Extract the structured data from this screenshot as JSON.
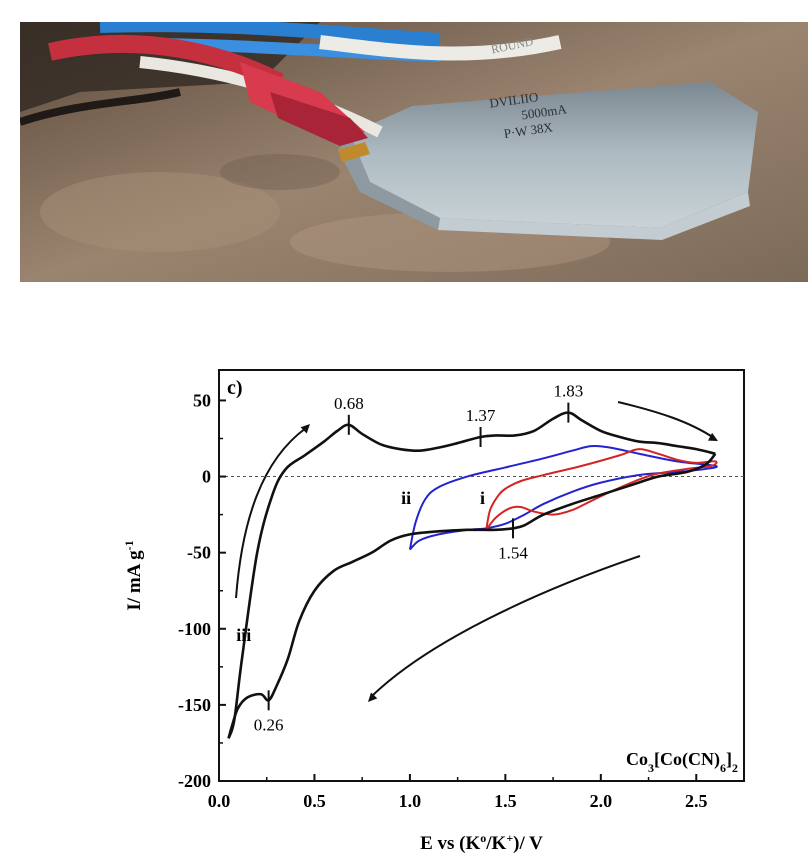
{
  "photo": {
    "label_fragments": [
      "ROUND",
      "DVILIIO",
      "5000mA",
      "P·W 38X"
    ],
    "colors": {
      "cardboard": "#9b8672",
      "pouch": "#a9b6bd",
      "red_clip": "#d83a4e",
      "blue_wire": "#2a7fd0",
      "white_wire": "#e9e7df"
    }
  },
  "chart_data": {
    "type": "line",
    "panel_label": "c)",
    "xlabel": "E vs (K°/K⁺)/ V",
    "ylabel": "I/ mA g⁻¹",
    "xlim": [
      0.0,
      2.75
    ],
    "ylim": [
      -200,
      70
    ],
    "xticks": [
      "0.0",
      "0.5",
      "1.0",
      "1.5",
      "2.0",
      "2.5"
    ],
    "yticks": [
      "50",
      "0",
      "-50",
      "-100",
      "-150",
      "-200"
    ],
    "compound": "Co3[Co(CN)6]2",
    "zero_line": true,
    "series": [
      {
        "name": "iii",
        "color": "#111111",
        "oxidation": [
          [
            0.05,
            -172
          ],
          [
            0.08,
            -160
          ],
          [
            0.12,
            -120
          ],
          [
            0.2,
            -50
          ],
          [
            0.28,
            -12
          ],
          [
            0.35,
            5
          ],
          [
            0.45,
            14
          ],
          [
            0.55,
            23
          ],
          [
            0.62,
            30
          ],
          [
            0.68,
            34
          ],
          [
            0.75,
            28
          ],
          [
            0.85,
            21
          ],
          [
            0.95,
            18
          ],
          [
            1.05,
            17
          ],
          [
            1.15,
            19
          ],
          [
            1.25,
            22
          ],
          [
            1.37,
            26
          ],
          [
            1.45,
            27
          ],
          [
            1.55,
            27
          ],
          [
            1.65,
            30
          ],
          [
            1.75,
            38
          ],
          [
            1.83,
            42
          ],
          [
            1.9,
            37
          ],
          [
            2.0,
            30
          ],
          [
            2.1,
            26
          ],
          [
            2.2,
            23
          ],
          [
            2.3,
            22
          ],
          [
            2.4,
            20
          ],
          [
            2.5,
            18
          ],
          [
            2.6,
            15
          ]
        ],
        "reduction": [
          [
            2.6,
            15
          ],
          [
            2.55,
            8
          ],
          [
            2.45,
            3
          ],
          [
            2.3,
            0
          ],
          [
            2.15,
            -6
          ],
          [
            2.0,
            -12
          ],
          [
            1.85,
            -18
          ],
          [
            1.7,
            -25
          ],
          [
            1.6,
            -32
          ],
          [
            1.54,
            -34
          ],
          [
            1.45,
            -35
          ],
          [
            1.3,
            -35
          ],
          [
            1.15,
            -36
          ],
          [
            1.0,
            -38
          ],
          [
            0.9,
            -42
          ],
          [
            0.8,
            -50
          ],
          [
            0.7,
            -56
          ],
          [
            0.6,
            -62
          ],
          [
            0.5,
            -75
          ],
          [
            0.42,
            -95
          ],
          [
            0.36,
            -120
          ],
          [
            0.3,
            -138
          ],
          [
            0.26,
            -147
          ],
          [
            0.22,
            -143
          ],
          [
            0.15,
            -145
          ],
          [
            0.1,
            -152
          ],
          [
            0.07,
            -163
          ],
          [
            0.05,
            -172
          ]
        ]
      },
      {
        "name": "ii",
        "color": "#2323d0",
        "points": [
          [
            1.0,
            -48
          ],
          [
            1.03,
            -30
          ],
          [
            1.08,
            -15
          ],
          [
            1.15,
            -7
          ],
          [
            1.3,
            0
          ],
          [
            1.5,
            6
          ],
          [
            1.7,
            12
          ],
          [
            1.85,
            17
          ],
          [
            1.95,
            20
          ],
          [
            2.05,
            19
          ],
          [
            2.2,
            15
          ],
          [
            2.4,
            10
          ],
          [
            2.6,
            7
          ],
          [
            2.55,
            5
          ],
          [
            2.4,
            3
          ],
          [
            2.2,
            1
          ],
          [
            2.0,
            -4
          ],
          [
            1.85,
            -10
          ],
          [
            1.7,
            -18
          ],
          [
            1.6,
            -25
          ],
          [
            1.5,
            -31
          ],
          [
            1.4,
            -34
          ],
          [
            1.3,
            -35
          ],
          [
            1.15,
            -38
          ],
          [
            1.05,
            -42
          ],
          [
            1.0,
            -48
          ]
        ]
      },
      {
        "name": "i",
        "color": "#d42424",
        "points": [
          [
            1.4,
            -35
          ],
          [
            1.42,
            -22
          ],
          [
            1.46,
            -13
          ],
          [
            1.5,
            -8
          ],
          [
            1.58,
            -3
          ],
          [
            1.7,
            1
          ],
          [
            1.9,
            7
          ],
          [
            2.1,
            14
          ],
          [
            2.2,
            18
          ],
          [
            2.3,
            15
          ],
          [
            2.4,
            11
          ],
          [
            2.5,
            9
          ],
          [
            2.6,
            10
          ],
          [
            2.58,
            7
          ],
          [
            2.45,
            5
          ],
          [
            2.3,
            2
          ],
          [
            2.2,
            -2
          ],
          [
            2.05,
            -10
          ],
          [
            1.95,
            -16
          ],
          [
            1.85,
            -22
          ],
          [
            1.75,
            -25
          ],
          [
            1.65,
            -23
          ],
          [
            1.58,
            -20
          ],
          [
            1.52,
            -21
          ],
          [
            1.45,
            -27
          ],
          [
            1.4,
            -35
          ]
        ]
      }
    ],
    "peak_labels": [
      {
        "text": "0.68",
        "x": 0.68,
        "y": 34,
        "pos": "above"
      },
      {
        "text": "1.37",
        "x": 1.37,
        "y": 26,
        "pos": "above"
      },
      {
        "text": "1.83",
        "x": 1.83,
        "y": 42,
        "pos": "above"
      },
      {
        "text": "1.54",
        "x": 1.54,
        "y": -34,
        "pos": "below"
      },
      {
        "text": "0.26",
        "x": 0.26,
        "y": -147,
        "pos": "below"
      }
    ],
    "curve_labels": [
      {
        "text": "iii",
        "x": 0.13,
        "y": -108
      },
      {
        "text": "ii",
        "x": 0.98,
        "y": -18
      },
      {
        "text": "i",
        "x": 1.38,
        "y": -18
      }
    ]
  }
}
